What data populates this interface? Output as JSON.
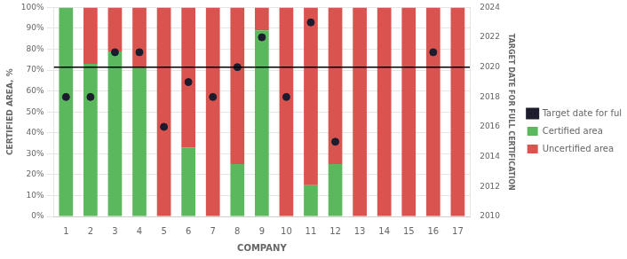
{
  "chart_data": {
    "type": "bar",
    "stacked": true,
    "xlabel": "COMPANY",
    "ylabel": "CERTIFIED AREA, %",
    "y2label": "TARGET DATE FOR FULL CERTIFICATION",
    "categories": [
      "1",
      "2",
      "3",
      "4",
      "5",
      "6",
      "7",
      "8",
      "9",
      "10",
      "11",
      "12",
      "13",
      "14",
      "15",
      "16",
      "17"
    ],
    "series": [
      {
        "name": "Certified area",
        "color": "#5cb85c",
        "values": [
          100,
          73,
          79,
          71,
          0,
          33,
          0,
          25,
          89,
          0,
          15,
          25,
          0,
          0,
          0,
          0,
          0
        ]
      },
      {
        "name": "Uncertified area",
        "color": "#d9534f",
        "values": [
          0,
          27,
          21,
          29,
          100,
          67,
          100,
          75,
          11,
          100,
          85,
          75,
          100,
          100,
          100,
          100,
          100
        ]
      },
      {
        "name": "Target date for full RSPO certification",
        "type": "scatter",
        "marker": "circle",
        "axis": "y2",
        "color": "#1c1c2e",
        "values": [
          2018,
          2018,
          2021,
          2021,
          2016,
          2019,
          2018,
          2020,
          2022,
          2018,
          2023,
          2015,
          null,
          null,
          null,
          2021,
          null
        ]
      }
    ],
    "ylim": [
      0,
      100
    ],
    "yticks": [
      {
        "value": 0,
        "label": "0%"
      },
      {
        "value": 10,
        "label": "10%"
      },
      {
        "value": 20,
        "label": "20%"
      },
      {
        "value": 30,
        "label": "30%"
      },
      {
        "value": 40,
        "label": "40%"
      },
      {
        "value": 50,
        "label": "50%"
      },
      {
        "value": 60,
        "label": "60%"
      },
      {
        "value": 70,
        "label": "70%"
      },
      {
        "value": 80,
        "label": "80%"
      },
      {
        "value": 90,
        "label": "90%"
      },
      {
        "value": 100,
        "label": "100%"
      }
    ],
    "y2lim": [
      2010,
      2024
    ],
    "y2ticks": [
      2010,
      2012,
      2014,
      2016,
      2018,
      2020,
      2022,
      2024
    ],
    "hline": {
      "value": 2020,
      "axis": "y2",
      "color": "#000000"
    },
    "grid": true,
    "legend": "right"
  }
}
